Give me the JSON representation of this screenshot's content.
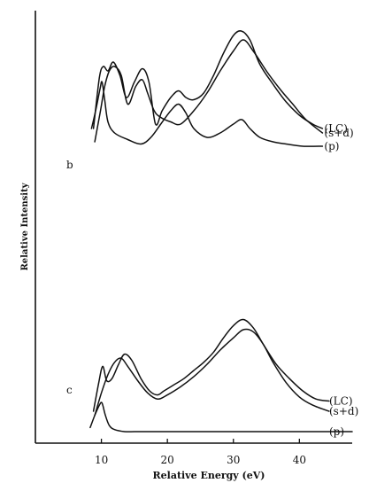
{
  "chart_data": {
    "type": "line",
    "xlabel": "Relative Energy (eV)",
    "ylabel": "Relative Intensity",
    "xlim": [
      0,
      48
    ],
    "xticks": [
      10,
      20,
      30,
      40
    ],
    "x_tick_labels": [
      "10",
      "20",
      "30",
      "40"
    ],
    "grid": false,
    "panels": [
      {
        "label": "b",
        "series": [
          {
            "name": "(LC)",
            "x": [
              8.8,
              9.7,
              10.3,
              11.0,
              11.8,
              12.8,
              13.8,
              15.0,
              16.2,
              17.2,
              18.2,
              19.2,
              20.5,
              21.7,
              22.8,
              24.0,
              25.5,
              27.0,
              28.5,
              30.0,
              31.2,
              32.5,
              34.0,
              36.0,
              38.0,
              40.0,
              42.0,
              43.5
            ],
            "y": [
              0.58,
              0.81,
              0.86,
              0.84,
              0.88,
              0.82,
              0.72,
              0.79,
              0.85,
              0.79,
              0.6,
              0.66,
              0.72,
              0.75,
              0.72,
              0.71,
              0.74,
              0.82,
              0.92,
              1.0,
              1.02,
              0.98,
              0.87,
              0.78,
              0.7,
              0.64,
              0.6,
              0.58
            ]
          },
          {
            "name": "(s+d)",
            "x": [
              9.0,
              9.8,
              10.5,
              11.2,
              12.0,
              13.0,
              14.0,
              15.2,
              16.2,
              17.0,
              18.0,
              19.0,
              20.5,
              22.0,
              24.0,
              26.0,
              28.0,
              30.0,
              31.5,
              33.0,
              35.0,
              37.0,
              39.0,
              41.0,
              43.5
            ],
            "y": [
              0.52,
              0.65,
              0.77,
              0.84,
              0.86,
              0.82,
              0.69,
              0.77,
              0.8,
              0.74,
              0.66,
              0.63,
              0.61,
              0.6,
              0.66,
              0.74,
              0.84,
              0.93,
              0.98,
              0.93,
              0.84,
              0.76,
              0.69,
              0.62,
              0.56
            ]
          },
          {
            "name": "(p)",
            "x": [
              8.5,
              9.2,
              9.8,
              10.1,
              10.5,
              11.0,
              12.0,
              14.0,
              16.0,
              17.5,
              19.0,
              20.5,
              21.7,
              22.8,
              24.0,
              26.0,
              28.0,
              30.0,
              31.3,
              32.5,
              34.0,
              36.0,
              38.0,
              40.5,
              43.5
            ],
            "y": [
              0.58,
              0.67,
              0.76,
              0.79,
              0.71,
              0.61,
              0.56,
              0.53,
              0.51,
              0.54,
              0.6,
              0.66,
              0.69,
              0.65,
              0.58,
              0.54,
              0.56,
              0.6,
              0.62,
              0.58,
              0.54,
              0.52,
              0.51,
              0.5,
              0.5
            ]
          }
        ]
      },
      {
        "label": "c",
        "series": [
          {
            "name": "(LC)",
            "x": [
              8.8,
              9.6,
              10.2,
              10.8,
              11.6,
              12.6,
              13.5,
              14.6,
              16.0,
              17.3,
              18.5,
              19.5,
              21.0,
              22.5,
              24.0,
              25.5,
              27.0,
              28.5,
              30.0,
              31.5,
              33.0,
              34.5,
              36.5,
              38.5,
              40.5,
              42.5,
              44.5
            ],
            "y": [
              0.1,
              0.24,
              0.32,
              0.25,
              0.26,
              0.33,
              0.38,
              0.35,
              0.26,
              0.2,
              0.18,
              0.2,
              0.23,
              0.26,
              0.3,
              0.34,
              0.39,
              0.46,
              0.52,
              0.55,
              0.51,
              0.43,
              0.33,
              0.26,
              0.2,
              0.16,
              0.15
            ]
          },
          {
            "name": "(s+d)",
            "x": [
              9.0,
              10.0,
              11.0,
              12.0,
              13.0,
              14.0,
              15.5,
              17.0,
              18.5,
              20.0,
              22.0,
              24.0,
              26.0,
              28.0,
              30.0,
              31.5,
              33.0,
              34.5,
              36.0,
              38.0,
              40.0,
              42.0,
              44.5
            ],
            "y": [
              0.08,
              0.19,
              0.28,
              0.34,
              0.36,
              0.32,
              0.25,
              0.19,
              0.16,
              0.18,
              0.22,
              0.27,
              0.33,
              0.4,
              0.46,
              0.5,
              0.49,
              0.43,
              0.34,
              0.24,
              0.17,
              0.13,
              0.1
            ]
          },
          {
            "name": "(p)",
            "x": [
              8.3,
              9.0,
              9.7,
              10.1,
              10.6,
              11.2,
              12.0,
              13.5,
              15.0,
              16.5,
              18.0,
              20.0,
              22.0,
              24.0,
              26.0,
              28.0,
              29.5,
              31.0,
              33.0,
              36.0,
              40.0,
              44.0,
              48.0
            ],
            "y": [
              0.02,
              0.08,
              0.13,
              0.14,
              0.08,
              0.03,
              0.01,
              0.0,
              0.0,
              0.0,
              0.0,
              0.0,
              0.0,
              0.0,
              0.0,
              0.0,
              0.0,
              0.0,
              0.0,
              0.0,
              0.0,
              0.0,
              0.0
            ]
          }
        ]
      }
    ]
  }
}
